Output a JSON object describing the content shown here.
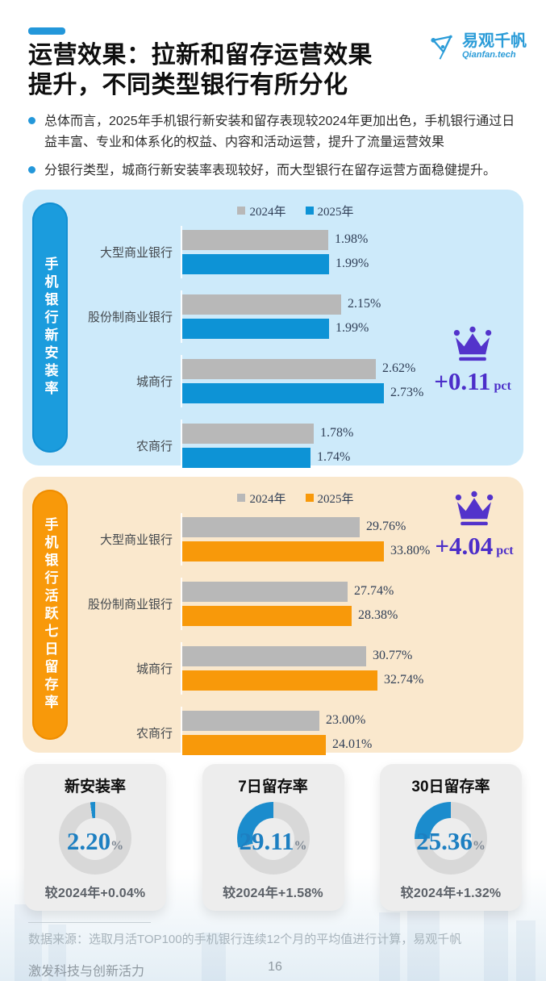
{
  "page": {
    "title": "运营效果：拉新和留存运营效果\n提升，不同类型银行有所分化",
    "logo": {
      "name": "易观千帆",
      "domain": "Qianfan.tech"
    },
    "bullets": [
      "总体而言，2025年手机银行新安装和留存表现较2024年更加出色，手机银行通过日益丰富、专业和体系化的权益、内容和活动运营，提升了流量运营效果",
      "分银行类型，城商行新安装率表现较好，而大型银行在留存运营方面稳健提升。"
    ],
    "footer": {
      "source": "数据来源：选取月活TOP100的手机银行连续12个月的平均值进行计算，易观千帆",
      "tagline": "激发科技与创新活力",
      "page_number": "16"
    }
  },
  "colors": {
    "accent_blue": "#2397da",
    "bar_blue": "#0d93d6",
    "bar_orange": "#f8990a",
    "bar_gray": "#b8b8b8",
    "panel_blue_bg": "#cdeafa",
    "panel_orange_bg": "#fae8cd",
    "crown_purple": "#5333cb",
    "donut_filled": "#1b8ccd",
    "donut_rest": "#d8d8d8"
  },
  "chart_data": [
    {
      "type": "bar",
      "orientation": "horizontal",
      "panel_title": "手机银行新安装率",
      "categories": [
        "大型商业银行",
        "股份制商业银行",
        "城商行",
        "农商行"
      ],
      "series": [
        {
          "name": "2024年",
          "color": "#b8b8b8",
          "values": [
            1.98,
            2.15,
            2.62,
            1.78
          ]
        },
        {
          "name": "2025年",
          "color": "#0d93d6",
          "values": [
            1.99,
            1.99,
            2.73,
            1.74
          ]
        }
      ],
      "value_suffix": "%",
      "legend_position": "top",
      "xlim": [
        0,
        2.73
      ],
      "highlight": {
        "label": "+0.11",
        "unit": "pct"
      }
    },
    {
      "type": "bar",
      "orientation": "horizontal",
      "panel_title": "手机银行活跃七日留存率",
      "categories": [
        "大型商业银行",
        "股份制商业银行",
        "城商行",
        "农商行"
      ],
      "series": [
        {
          "name": "2024年",
          "color": "#b8b8b8",
          "values": [
            29.76,
            27.74,
            30.77,
            23.0
          ]
        },
        {
          "name": "2025年",
          "color": "#f8990a",
          "values": [
            33.8,
            28.38,
            32.74,
            24.01
          ]
        }
      ],
      "value_suffix": "%",
      "legend_position": "top",
      "xlim": [
        0,
        33.8
      ],
      "highlight": {
        "label": "+4.04",
        "unit": "pct"
      }
    },
    {
      "type": "pie",
      "style": "donut",
      "colors": {
        "filled": "#1b8ccd",
        "rest": "#d8d8d8"
      },
      "cards": [
        {
          "title": "新安装率",
          "value": "2.20",
          "unit": "%",
          "percent": 2.2,
          "delta": "较2024年+0.04%"
        },
        {
          "title": "7日留存率",
          "value": "29.11",
          "unit": "%",
          "percent": 29.11,
          "delta": "较2024年+1.58%"
        },
        {
          "title": "30日留存率",
          "value": "25.36",
          "unit": "%",
          "percent": 25.36,
          "delta": "较2024年+1.32%"
        }
      ]
    }
  ]
}
